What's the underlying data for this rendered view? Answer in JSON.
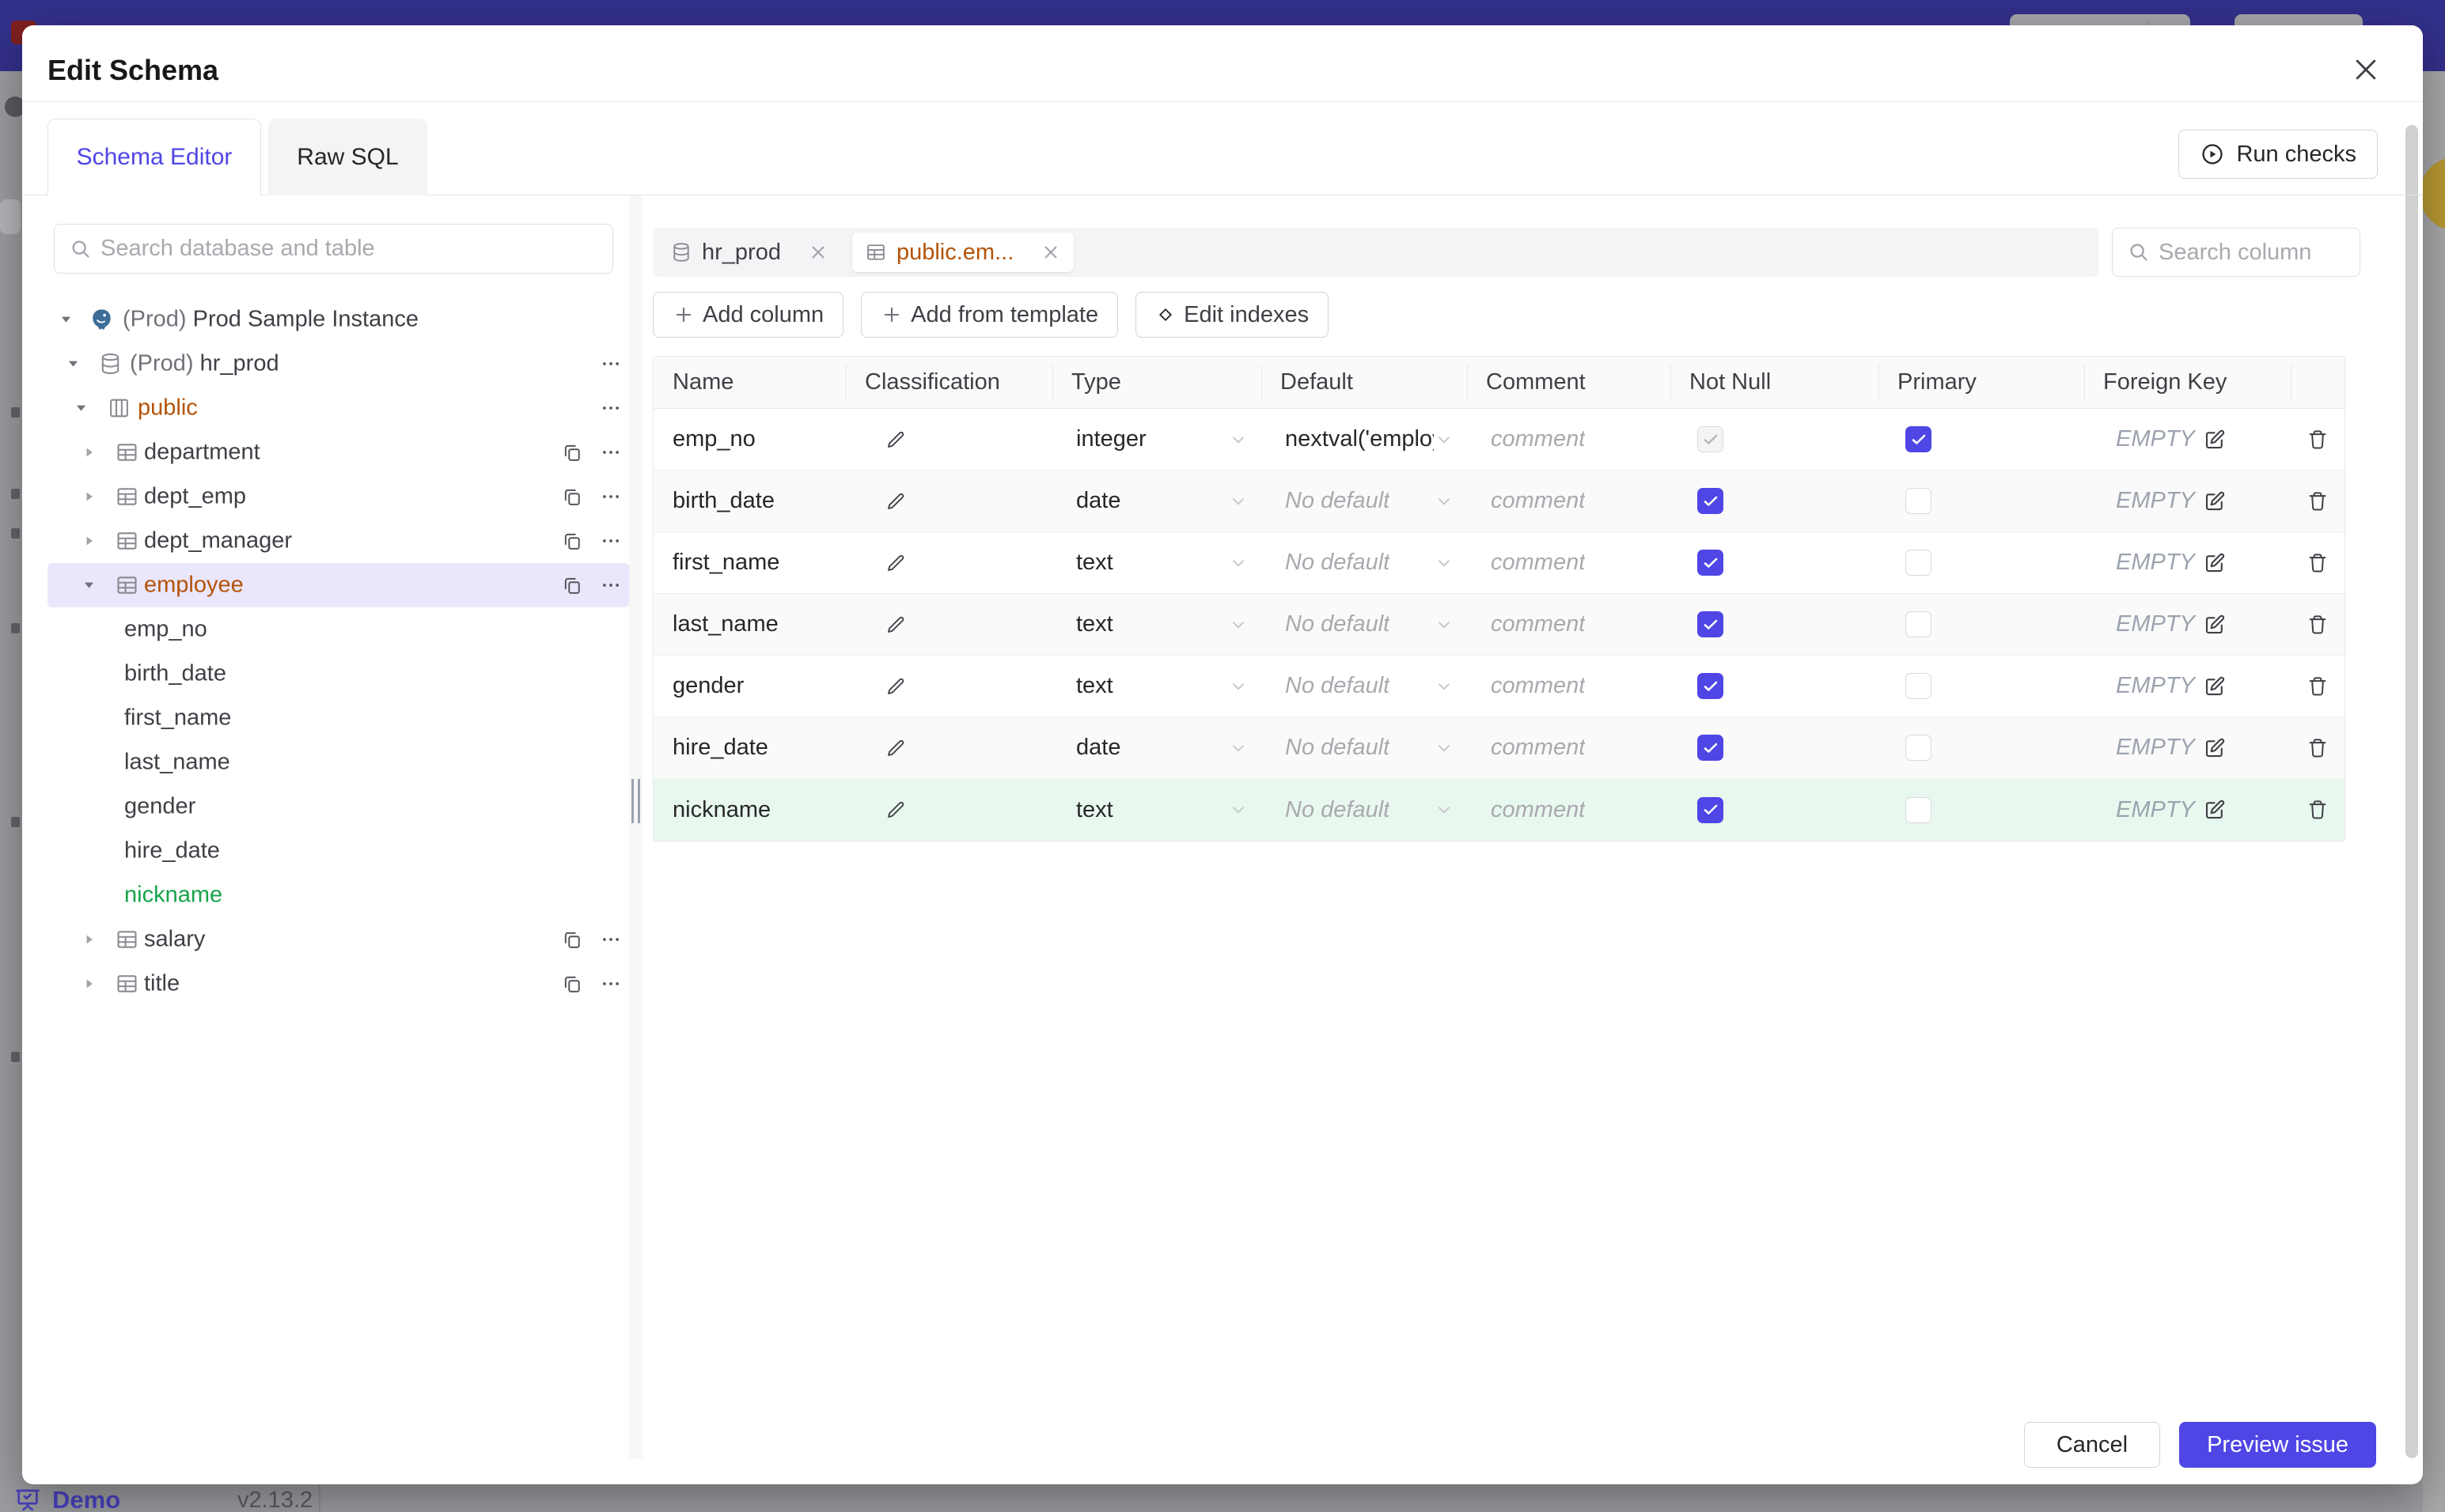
{
  "underlying": {
    "demo_label": "Demo",
    "version": "v2.13.2"
  },
  "modal": {
    "title": "Edit Schema",
    "tabs": [
      {
        "label": "Schema Editor",
        "active": true
      },
      {
        "label": "Raw SQL",
        "active": false
      }
    ],
    "run_checks_label": "Run checks",
    "sidebar": {
      "search_placeholder": "Search database and table",
      "tree": [
        {
          "prefix": "(Prod) ",
          "label": "Prod Sample Instance",
          "level": 0,
          "icon": "postgres",
          "caret": "down"
        },
        {
          "prefix": "(Prod) ",
          "label": "hr_prod",
          "level": 1,
          "icon": "database",
          "caret": "down",
          "more": true
        },
        {
          "label": "public",
          "level": 2,
          "icon": "schema",
          "caret": "down",
          "color": "orange",
          "more": true
        },
        {
          "label": "department",
          "level": 3,
          "icon": "table",
          "caret": "right",
          "copy": true,
          "more": true
        },
        {
          "label": "dept_emp",
          "level": 3,
          "icon": "table",
          "caret": "right",
          "copy": true,
          "more": true
        },
        {
          "label": "dept_manager",
          "level": 3,
          "icon": "table",
          "caret": "right",
          "copy": true,
          "more": true
        },
        {
          "label": "employee",
          "level": 3,
          "icon": "table",
          "caret": "down",
          "color": "orange",
          "selected": true,
          "copy": true,
          "more": true
        },
        {
          "label": "emp_no",
          "level": 4
        },
        {
          "label": "birth_date",
          "level": 4
        },
        {
          "label": "first_name",
          "level": 4
        },
        {
          "label": "last_name",
          "level": 4
        },
        {
          "label": "gender",
          "level": 4
        },
        {
          "label": "hire_date",
          "level": 4
        },
        {
          "label": "nickname",
          "level": 4,
          "color": "green"
        },
        {
          "label": "salary",
          "level": 3,
          "icon": "table",
          "caret": "right",
          "copy": true,
          "more": true
        },
        {
          "label": "title",
          "level": 3,
          "icon": "table",
          "caret": "right",
          "copy": true,
          "more": true
        }
      ]
    },
    "editor": {
      "chips": [
        {
          "label": "hr_prod",
          "icon": "database"
        },
        {
          "label": "public.em...",
          "icon": "table",
          "active": true
        }
      ],
      "search_placeholder": "Search column",
      "actions": [
        {
          "label": "Add column",
          "icon": "plus"
        },
        {
          "label": "Add from template",
          "icon": "plus"
        },
        {
          "label": "Edit indexes",
          "icon": "diamond"
        }
      ],
      "table": {
        "headers": [
          "Name",
          "Classification",
          "Type",
          "Default",
          "Comment",
          "Not Null",
          "Primary",
          "Foreign Key"
        ],
        "comment_placeholder": "comment",
        "no_default_placeholder": "No default",
        "foreign_key_empty": "EMPTY",
        "rows": [
          {
            "name": "emp_no",
            "type": "integer",
            "default_value": "nextval('employ",
            "has_default": true,
            "not_null": "disabled-checked",
            "primary": "checked",
            "state": "normal"
          },
          {
            "name": "birth_date",
            "type": "date",
            "default_value": "",
            "has_default": false,
            "not_null": "checked",
            "primary": "unchecked",
            "state": "normal"
          },
          {
            "name": "first_name",
            "type": "text",
            "default_value": "",
            "has_default": false,
            "not_null": "checked",
            "primary": "unchecked",
            "state": "normal"
          },
          {
            "name": "last_name",
            "type": "text",
            "default_value": "",
            "has_default": false,
            "not_null": "checked",
            "primary": "unchecked",
            "state": "normal"
          },
          {
            "name": "gender",
            "type": "text",
            "default_value": "",
            "has_default": false,
            "not_null": "checked",
            "primary": "unchecked",
            "state": "normal"
          },
          {
            "name": "hire_date",
            "type": "date",
            "default_value": "",
            "has_default": false,
            "not_null": "checked",
            "primary": "unchecked",
            "state": "normal"
          },
          {
            "name": "nickname",
            "type": "text",
            "default_value": "",
            "has_default": false,
            "not_null": "checked",
            "primary": "unchecked",
            "state": "new"
          }
        ]
      }
    },
    "footer": {
      "cancel_label": "Cancel",
      "submit_label": "Preview issue"
    },
    "colors": {
      "accent": "#4f46e5",
      "orange": "#b45309",
      "green": "#16a34a",
      "new_row_bg": "#e8f8ee",
      "selected_tree_bg": "#eae6fb"
    }
  }
}
